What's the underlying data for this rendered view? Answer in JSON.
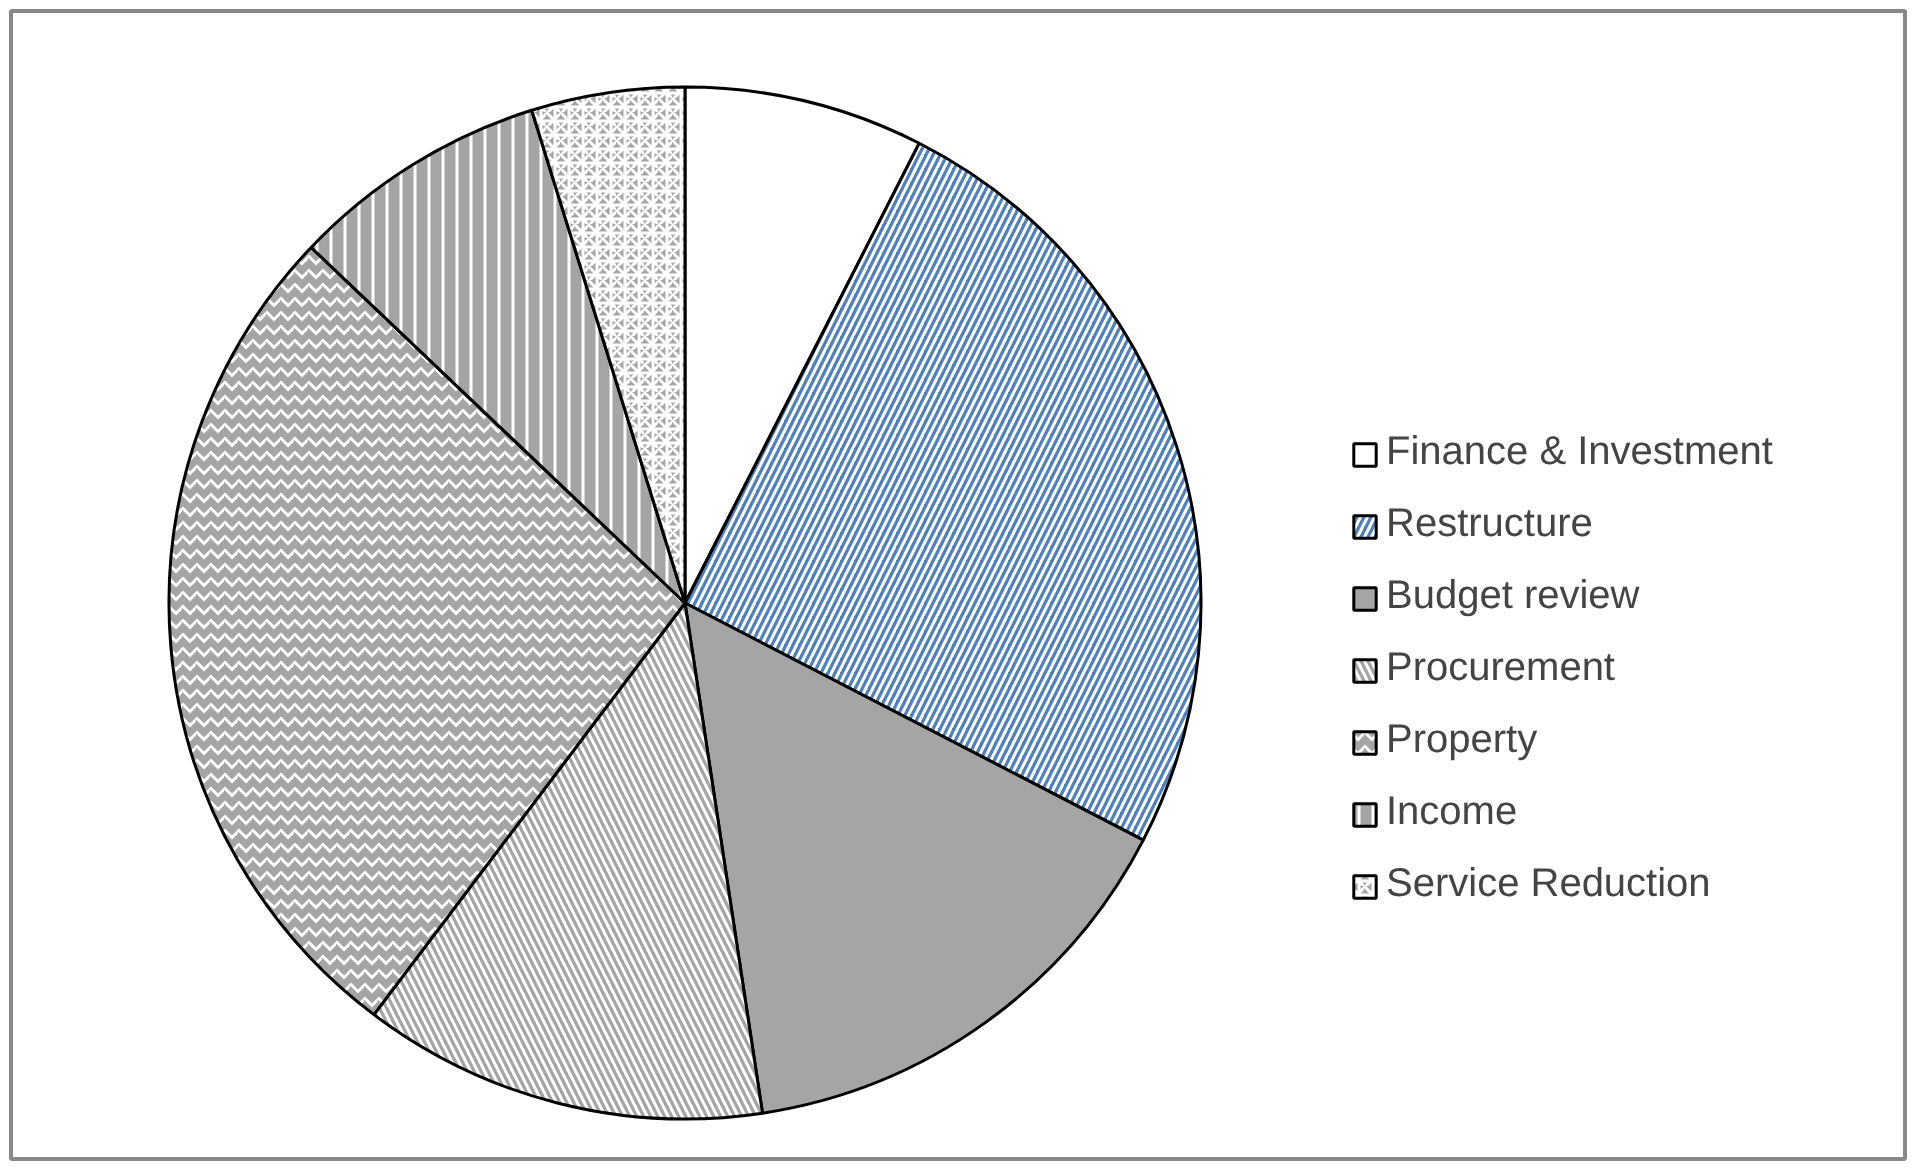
{
  "chart_data": {
    "type": "pie",
    "categories": [
      "Finance & Investment",
      "Restructure",
      "Budget review",
      "Procurement",
      "Property",
      "Income",
      "Service Reduction"
    ],
    "values": [
      7.5,
      25.1,
      15.0,
      12.7,
      26.8,
      8.1,
      4.8
    ],
    "colors": [
      "#ffffff",
      "#4f81bd",
      "#a5a5a5",
      "#a5a5a5",
      "#a5a5a5",
      "#a5a5a5",
      "#a5a5a5"
    ],
    "legend": "right"
  }
}
